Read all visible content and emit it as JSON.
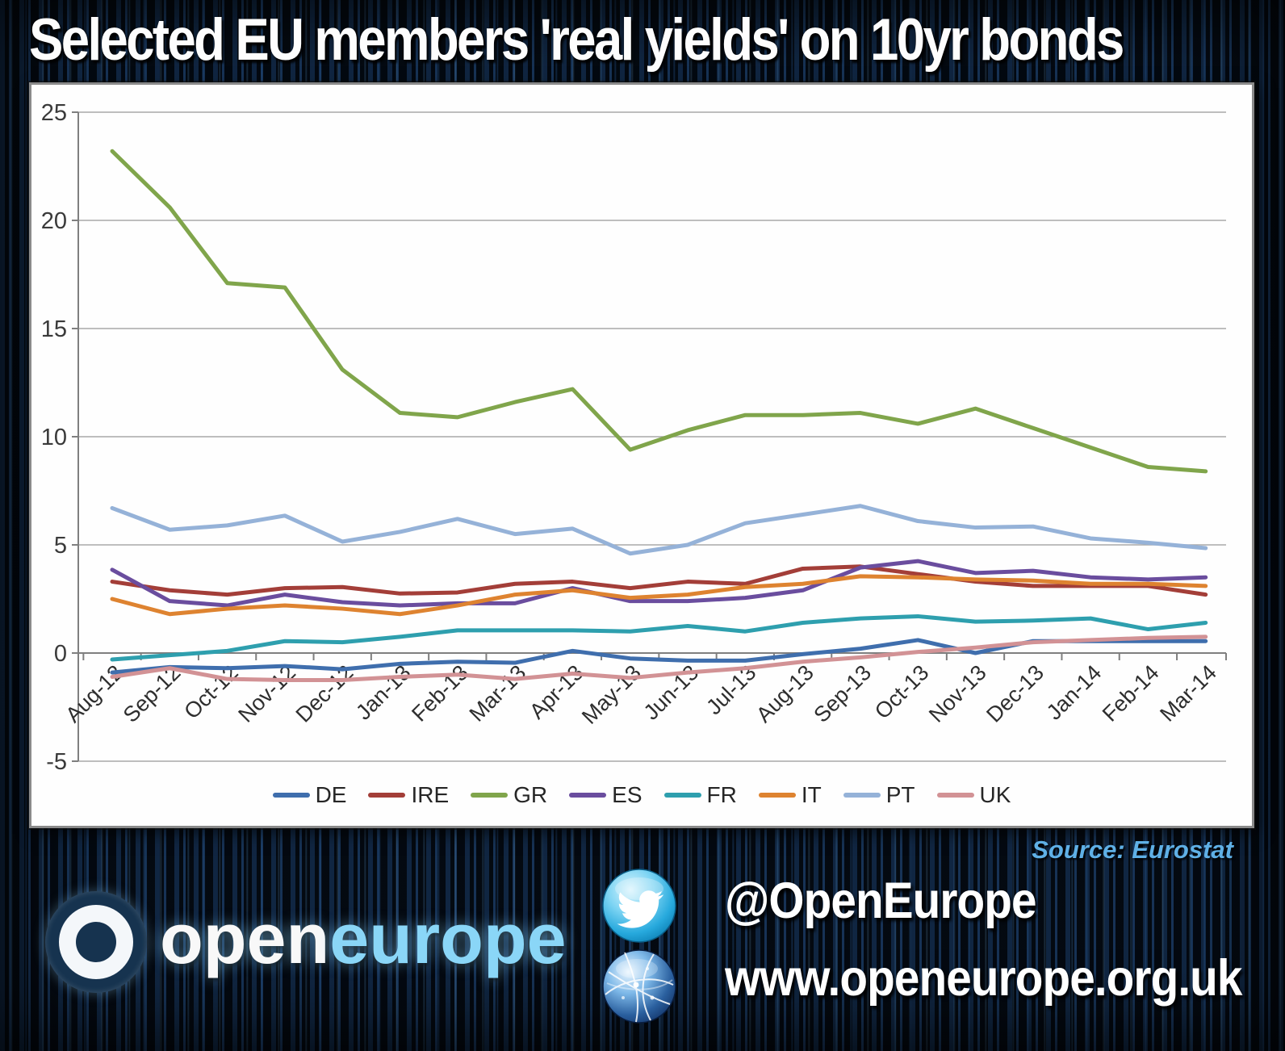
{
  "title": "Selected EU members 'real yields' on 10yr bonds",
  "source_note": "Source: Eurostat",
  "branding": {
    "logo_open": "open",
    "logo_europe": "europe",
    "twitter_handle": "@OpenEurope",
    "website": "www.openeurope.org.uk"
  },
  "chart_data": {
    "type": "line",
    "title": "Selected EU members 'real yields' on 10yr bonds",
    "xlabel": "",
    "ylabel": "",
    "ylim": [
      -5,
      25
    ],
    "yticks": [
      25,
      20,
      15,
      10,
      5,
      0,
      -5
    ],
    "grid": true,
    "legend_position": "bottom",
    "x_labels": [
      "Aug-12",
      "Sep-12",
      "Oct-12",
      "Nov-12",
      "Dec-12",
      "Jan-13",
      "Feb-13",
      "Mar-13",
      "Apr-13",
      "May-13",
      "Jun-13",
      "Jul-13",
      "Aug-13",
      "Sep-13",
      "Oct-13",
      "Nov-13",
      "Dec-13",
      "Jan-14",
      "Feb-14",
      "Mar-14"
    ],
    "series": [
      {
        "name": "DE",
        "color": "#3F6EAD",
        "values": [
          -0.9,
          -0.65,
          -0.7,
          -0.6,
          -0.75,
          -0.5,
          -0.4,
          -0.45,
          0.1,
          -0.25,
          -0.35,
          -0.35,
          -0.05,
          0.2,
          0.6,
          0.0,
          0.55,
          0.55,
          0.55,
          0.55
        ]
      },
      {
        "name": "IRE",
        "color": "#A33E38",
        "values": [
          3.3,
          2.9,
          2.7,
          3.0,
          3.05,
          2.75,
          2.8,
          3.2,
          3.3,
          3.0,
          3.3,
          3.2,
          3.9,
          4.0,
          3.65,
          3.3,
          3.1,
          3.1,
          3.1,
          2.7
        ]
      },
      {
        "name": "GR",
        "color": "#80A54B",
        "values": [
          23.2,
          20.6,
          17.1,
          16.9,
          13.1,
          11.1,
          10.9,
          11.6,
          12.2,
          9.4,
          10.3,
          11.0,
          11.0,
          11.1,
          10.6,
          11.3,
          10.4,
          9.5,
          8.6,
          8.4
        ]
      },
      {
        "name": "ES",
        "color": "#6A4D9E",
        "values": [
          3.85,
          2.4,
          2.2,
          2.7,
          2.35,
          2.2,
          2.3,
          2.3,
          3.0,
          2.4,
          2.4,
          2.55,
          2.9,
          3.95,
          4.25,
          3.7,
          3.8,
          3.5,
          3.4,
          3.5
        ]
      },
      {
        "name": "FR",
        "color": "#2E9FAE",
        "values": [
          -0.3,
          -0.1,
          0.1,
          0.55,
          0.5,
          0.75,
          1.05,
          1.05,
          1.05,
          1.0,
          1.25,
          1.0,
          1.4,
          1.6,
          1.7,
          1.45,
          1.5,
          1.6,
          1.1,
          1.4
        ]
      },
      {
        "name": "IT",
        "color": "#DE8330",
        "values": [
          2.5,
          1.8,
          2.05,
          2.2,
          2.05,
          1.8,
          2.2,
          2.7,
          2.9,
          2.55,
          2.7,
          3.05,
          3.2,
          3.55,
          3.5,
          3.4,
          3.35,
          3.2,
          3.2,
          3.1
        ]
      },
      {
        "name": "PT",
        "color": "#95B2D8",
        "values": [
          6.7,
          5.7,
          5.9,
          6.35,
          5.15,
          5.6,
          6.2,
          5.5,
          5.75,
          4.6,
          5.0,
          6.0,
          6.4,
          6.8,
          6.1,
          5.8,
          5.85,
          5.3,
          5.1,
          4.85
        ]
      },
      {
        "name": "UK",
        "color": "#D29295",
        "values": [
          -1.1,
          -0.7,
          -1.2,
          -1.25,
          -1.25,
          -1.1,
          -1.0,
          -1.2,
          -0.95,
          -1.15,
          -0.9,
          -0.7,
          -0.4,
          -0.2,
          0.05,
          0.25,
          0.5,
          0.6,
          0.7,
          0.75
        ]
      }
    ]
  }
}
